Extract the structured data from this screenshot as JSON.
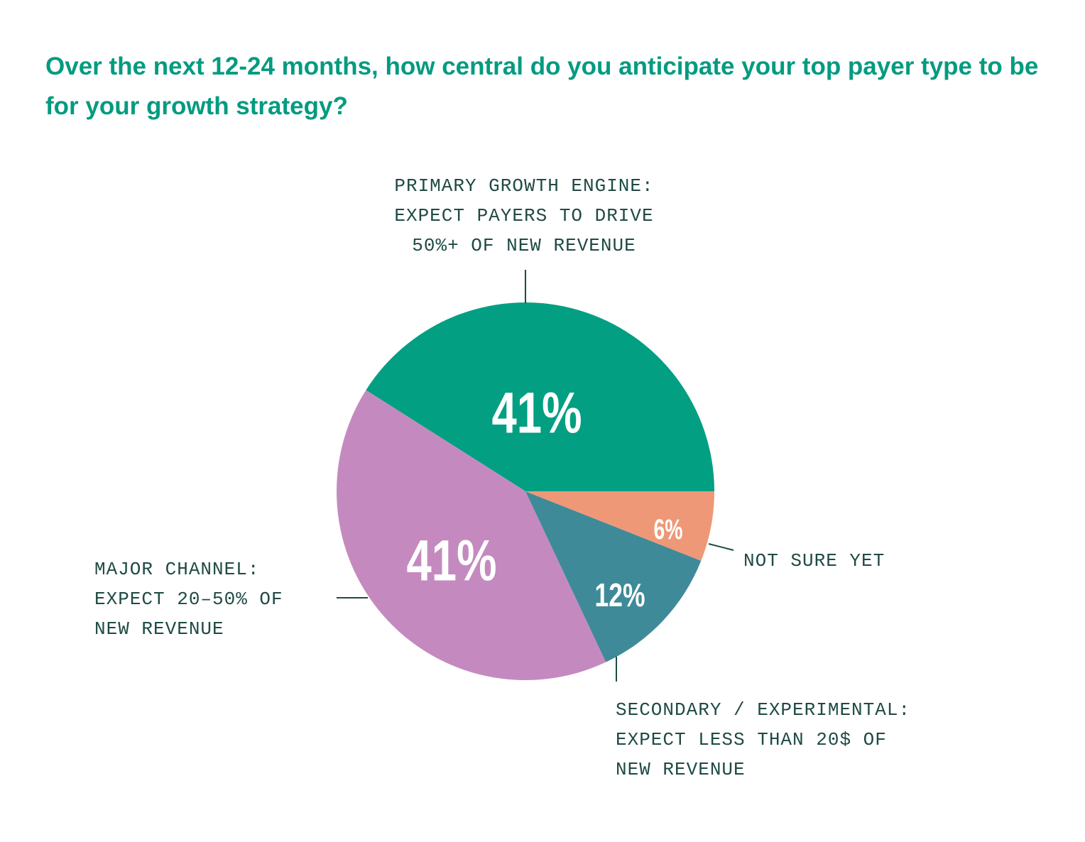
{
  "chart_data": {
    "type": "pie",
    "title": "Over the next 12-24 months, how central do you anticipate your top payer type to be for your growth strategy?",
    "slices": [
      {
        "name": "primary",
        "value": 41,
        "label": "41%",
        "color": "#039f82",
        "callout": [
          "PRIMARY GROWTH ENGINE:",
          "EXPECT PAYERS TO DRIVE",
          "50%+ OF NEW REVENUE"
        ]
      },
      {
        "name": "major",
        "value": 41,
        "label": "41%",
        "color": "#c48abf",
        "callout": [
          "MAJOR CHANNEL:",
          "EXPECT 20–50% OF",
          "NEW REVENUE"
        ]
      },
      {
        "name": "secondary",
        "value": 12,
        "label": "12%",
        "color": "#3f8a98",
        "callout": [
          "SECONDARY / EXPERIMENTAL:",
          "EXPECT LESS THAN 20$ OF",
          "NEW REVENUE"
        ]
      },
      {
        "name": "not-sure",
        "value": 6,
        "label": "6%",
        "color": "#ee9878",
        "callout": [
          "NOT SURE YET"
        ]
      }
    ]
  }
}
